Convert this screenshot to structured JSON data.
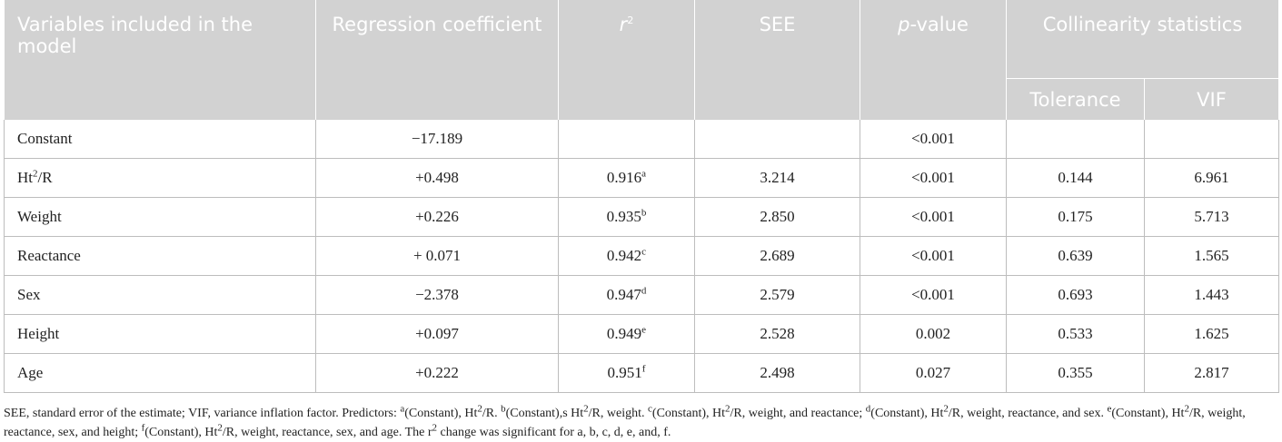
{
  "header": {
    "variables": "Variables included in the model",
    "regression": "Regression coefficient",
    "r2_base": "r",
    "r2_sup": "2",
    "see": "SEE",
    "p_prefix": "p",
    "p_suffix": "-value",
    "collinearity": "Collinearity statistics",
    "tolerance": "Tolerance",
    "vif": "VIF"
  },
  "rows": [
    {
      "variable": "Constant",
      "var_sup": "",
      "var_suffix": "",
      "coef": "−17.189",
      "r2": "",
      "r2_sup": "",
      "see": "",
      "p": "<0.001",
      "tol": "",
      "vif": ""
    },
    {
      "variable": "Ht",
      "var_sup": "2",
      "var_suffix": "/R",
      "coef": "+0.498",
      "r2": "0.916",
      "r2_sup": "a",
      "see": "3.214",
      "p": "<0.001",
      "tol": "0.144",
      "vif": "6.961"
    },
    {
      "variable": "Weight",
      "var_sup": "",
      "var_suffix": "",
      "coef": "+0.226",
      "r2": "0.935",
      "r2_sup": "b",
      "see": "2.850",
      "p": "<0.001",
      "tol": "0.175",
      "vif": "5.713"
    },
    {
      "variable": "Reactance",
      "var_sup": "",
      "var_suffix": "",
      "coef": "+ 0.071",
      "r2": "0.942",
      "r2_sup": "c",
      "see": "2.689",
      "p": "<0.001",
      "tol": "0.639",
      "vif": "1.565"
    },
    {
      "variable": "Sex",
      "var_sup": "",
      "var_suffix": "",
      "coef": "−2.378",
      "r2": "0.947",
      "r2_sup": "d",
      "see": "2.579",
      "p": "<0.001",
      "tol": "0.693",
      "vif": "1.443"
    },
    {
      "variable": "Height",
      "var_sup": "",
      "var_suffix": "",
      "coef": "+0.097",
      "r2": "0.949",
      "r2_sup": "e",
      "see": "2.528",
      "p": "0.002",
      "tol": "0.533",
      "vif": "1.625"
    },
    {
      "variable": "Age",
      "var_sup": "",
      "var_suffix": "",
      "coef": "+0.222",
      "r2": "0.951",
      "r2_sup": "f",
      "see": "2.498",
      "p": "0.027",
      "tol": "0.355",
      "vif": "2.817"
    }
  ],
  "footnote": {
    "p1": "SEE, standard error of the estimate; VIF, variance inflation factor. Predictors: ",
    "a_sup": "a",
    "a_text_1": "(Constant), Ht",
    "a_text_sup": "2",
    "a_text_2": "/R. ",
    "b_sup": "b",
    "b_text_1": "(Constant),s Ht",
    "b_text_sup": "2",
    "b_text_2": "/R, weight. ",
    "c_sup": "c",
    "c_text_1": "(Constant), Ht",
    "c_text_sup": "2",
    "c_text_2": "/R, weight, and reactance; ",
    "d_sup": "d",
    "d_text_1": "(Constant), Ht",
    "d_text_sup": "2",
    "d_text_2": "/R, weight, reactance, and sex. ",
    "e_sup": "e",
    "e_text_1": "(Constant), Ht",
    "e_text_sup": "2",
    "e_text_2": "/R, weight, reactance, sex, and height; ",
    "f_sup": "f",
    "f_text_1": "(Constant), Ht",
    "f_text_sup": "2",
    "f_text_2": "/R, weight, reactance, sex, and age. The r",
    "end_sup": "2",
    "end_text": " change was significant for a, b, c, d, e, and, f."
  }
}
